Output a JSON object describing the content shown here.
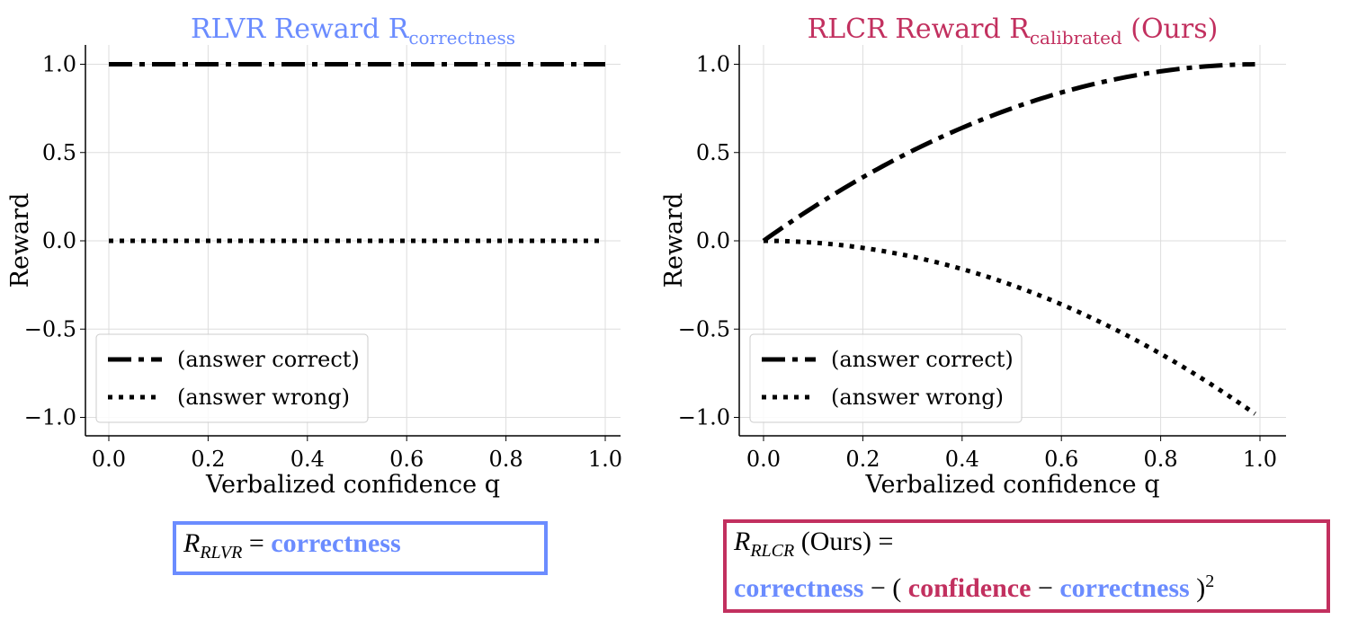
{
  "colors": {
    "blue": "#6b8cff",
    "crimson": "#c2305f"
  },
  "chart_data": [
    {
      "type": "line",
      "title": "RLVR Reward R",
      "title_sub": "correctness",
      "title_color": "#6b8cff",
      "xlabel": "Verbalized confidence q",
      "ylabel": "Reward",
      "xlim": [
        -0.05,
        1.05
      ],
      "ylim": [
        -1.1,
        1.1
      ],
      "xticks": [
        "0.0",
        "0.2",
        "0.4",
        "0.6",
        "0.8",
        "1.0"
      ],
      "yticks": [
        "1.0",
        "0.5",
        "0.0",
        "−0.5",
        "−1.0"
      ],
      "grid": true,
      "legend": "lower-left",
      "series": [
        {
          "name": "(answer correct)",
          "style": "dashdot",
          "x": [
            0,
            0.25,
            0.5,
            0.75,
            1.0
          ],
          "y": [
            1,
            1,
            1,
            1,
            1
          ]
        },
        {
          "name": "(answer wrong)",
          "style": "dotted",
          "x": [
            0,
            0.25,
            0.5,
            0.75,
            1.0
          ],
          "y": [
            0,
            0,
            0,
            0,
            0
          ]
        }
      ]
    },
    {
      "type": "line",
      "title": "RLCR Reward R",
      "title_sub": "calibrated",
      "title_suffix": " (Ours)",
      "title_color": "#c2305f",
      "xlabel": "Verbalized confidence q",
      "ylabel": "Reward",
      "xlim": [
        -0.05,
        1.05
      ],
      "ylim": [
        -1.1,
        1.1
      ],
      "xticks": [
        "0.0",
        "0.2",
        "0.4",
        "0.6",
        "0.8",
        "1.0"
      ],
      "yticks": [
        "1.0",
        "0.5",
        "0.0",
        "−0.5",
        "−1.0"
      ],
      "grid": true,
      "legend": "lower-left",
      "series": [
        {
          "name": "(answer correct)",
          "style": "dashdot",
          "x": [
            0,
            0.1,
            0.2,
            0.3,
            0.4,
            0.5,
            0.6,
            0.7,
            0.8,
            0.9,
            0.99
          ],
          "y": [
            0,
            0.19,
            0.36,
            0.51,
            0.64,
            0.75,
            0.84,
            0.91,
            0.96,
            0.99,
            1.0
          ]
        },
        {
          "name": "(answer wrong)",
          "style": "dotted",
          "x": [
            0,
            0.1,
            0.2,
            0.3,
            0.4,
            0.5,
            0.6,
            0.7,
            0.8,
            0.9,
            0.99
          ],
          "y": [
            0,
            -0.01,
            -0.04,
            -0.09,
            -0.16,
            -0.25,
            -0.36,
            -0.49,
            -0.64,
            -0.81,
            -0.98
          ]
        }
      ]
    }
  ],
  "formulas": {
    "rlvr": {
      "lhs": "R",
      "sub": "RLVR",
      "eq": " = ",
      "term": "correctness"
    },
    "rlcr": {
      "lhs": "R",
      "sub": "RLCR",
      "ours": " (Ours) =",
      "t1": "correctness",
      "op1": " − ( ",
      "t2": "confidence",
      "op2": " − ",
      "t3": "correctness",
      "close": " )",
      "exp": "2"
    }
  }
}
